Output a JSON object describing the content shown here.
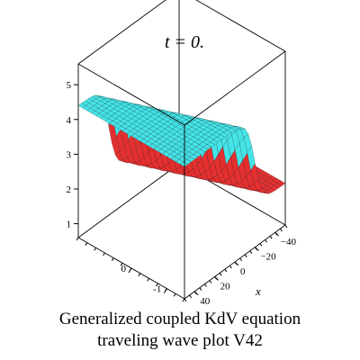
{
  "chart_data": {
    "type": "surface3d",
    "title": "t = 0.",
    "caption_lines": [
      "Generalized coupled KdV equation",
      "traveling wave plot V42"
    ],
    "axes": {
      "x": {
        "label": "x",
        "ticks": [
          -40,
          -20,
          0,
          20,
          40
        ],
        "range": [
          -50,
          50
        ]
      },
      "y": {
        "ticks": [
          -1,
          0
        ],
        "range": [
          -1.5,
          1.5
        ]
      },
      "z": {
        "ticks": [
          1,
          2,
          3,
          4,
          5
        ],
        "range": [
          0.6,
          5.6
        ]
      }
    },
    "surface": {
      "description_free": true,
      "x": [
        -50,
        50
      ],
      "y": [
        -1.5,
        1.5
      ],
      "low_level": 1.8,
      "high_level": 4.4,
      "kink_slope": 0.55,
      "colors": {
        "high": "#44e4e8",
        "low": "#e53030",
        "mesh": "#1a1a1a"
      }
    }
  }
}
